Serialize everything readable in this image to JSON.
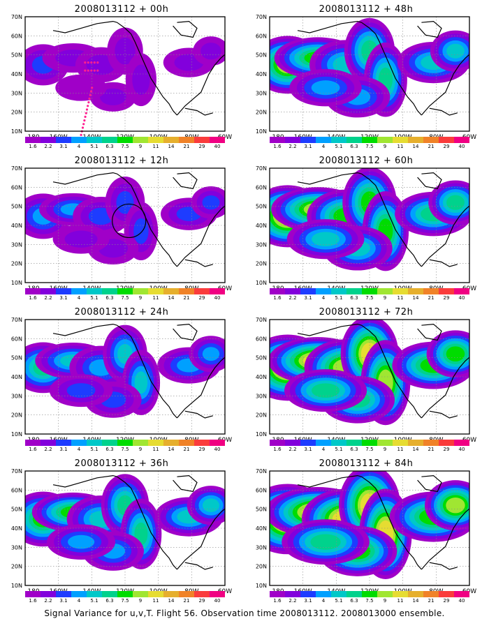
{
  "caption": "Signal Variance for u,v,T. Flight 56. Observation time 2008013112. 2008013000 ensemble.",
  "axis": {
    "lat_labels": [
      "70N",
      "60N",
      "50N",
      "40N",
      "30N",
      "20N",
      "10N"
    ],
    "lon_labels": [
      "180",
      "160W",
      "140W",
      "120W",
      "100W",
      "80W",
      "60W"
    ]
  },
  "legend_levels": [
    "1.6",
    "2.2",
    "3.1",
    "4",
    "5.1",
    "6.3",
    "7.5",
    "9",
    "11",
    "14",
    "21",
    "29",
    "40"
  ],
  "legend_colors": [
    "#a000c8",
    "#8200dc",
    "#1e3cff",
    "#00a0ff",
    "#00c8c8",
    "#00d28c",
    "#00dc00",
    "#a0e632",
    "#e6dc32",
    "#e6af2d",
    "#f08228",
    "#fa3c3c",
    "#f00082"
  ],
  "panels": [
    {
      "title": "2008013112 + 00h",
      "intensity": 0.22,
      "circle": false,
      "dots": true
    },
    {
      "title": "2008013112 + 12h",
      "intensity": 0.32,
      "circle": true,
      "dots": false
    },
    {
      "title": "2008013112 + 24h",
      "intensity": 0.45,
      "circle": false,
      "dots": false
    },
    {
      "title": "2008013112 + 36h",
      "intensity": 0.55,
      "circle": false,
      "dots": false
    },
    {
      "title": "2008013112 + 48h",
      "intensity": 0.62,
      "circle": false,
      "dots": false
    },
    {
      "title": "2008013112 + 60h",
      "intensity": 0.72,
      "circle": false,
      "dots": false
    },
    {
      "title": "2008013112 + 72h",
      "intensity": 0.82,
      "circle": false,
      "dots": false
    },
    {
      "title": "2008013112 + 84h",
      "intensity": 0.92,
      "circle": false,
      "dots": false
    }
  ]
}
